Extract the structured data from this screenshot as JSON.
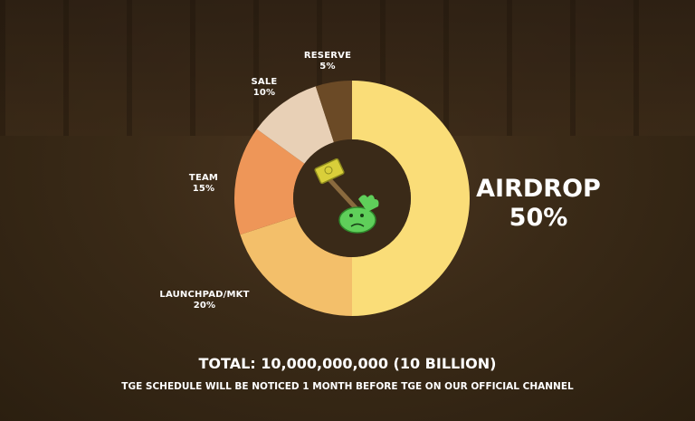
{
  "chart_data": {
    "type": "pie",
    "donut": true,
    "slices": [
      {
        "label": "AIRDROP",
        "value": 50,
        "display": "50%",
        "color": "#FADD78"
      },
      {
        "label": "LAUNCHPAD/MKT",
        "value": 20,
        "display": "20%",
        "color": "#F3BF6A"
      },
      {
        "label": "TEAM",
        "value": 15,
        "display": "15%",
        "color": "#EE9658"
      },
      {
        "label": "SALE",
        "value": 10,
        "display": "10%",
        "color": "#E8D0B6"
      },
      {
        "label": "RESERVE",
        "value": 5,
        "display": "5%",
        "color": "#6B4A26"
      }
    ],
    "center_icon": "hammer-slime-mascot"
  },
  "total": "TOTAL: 10,000,000,000 (10 BILLION)",
  "note": "TGE SCHEDULE WILL BE NOTICED 1 MONTH BEFORE TGE ON OUR OFFICIAL CHANNEL"
}
